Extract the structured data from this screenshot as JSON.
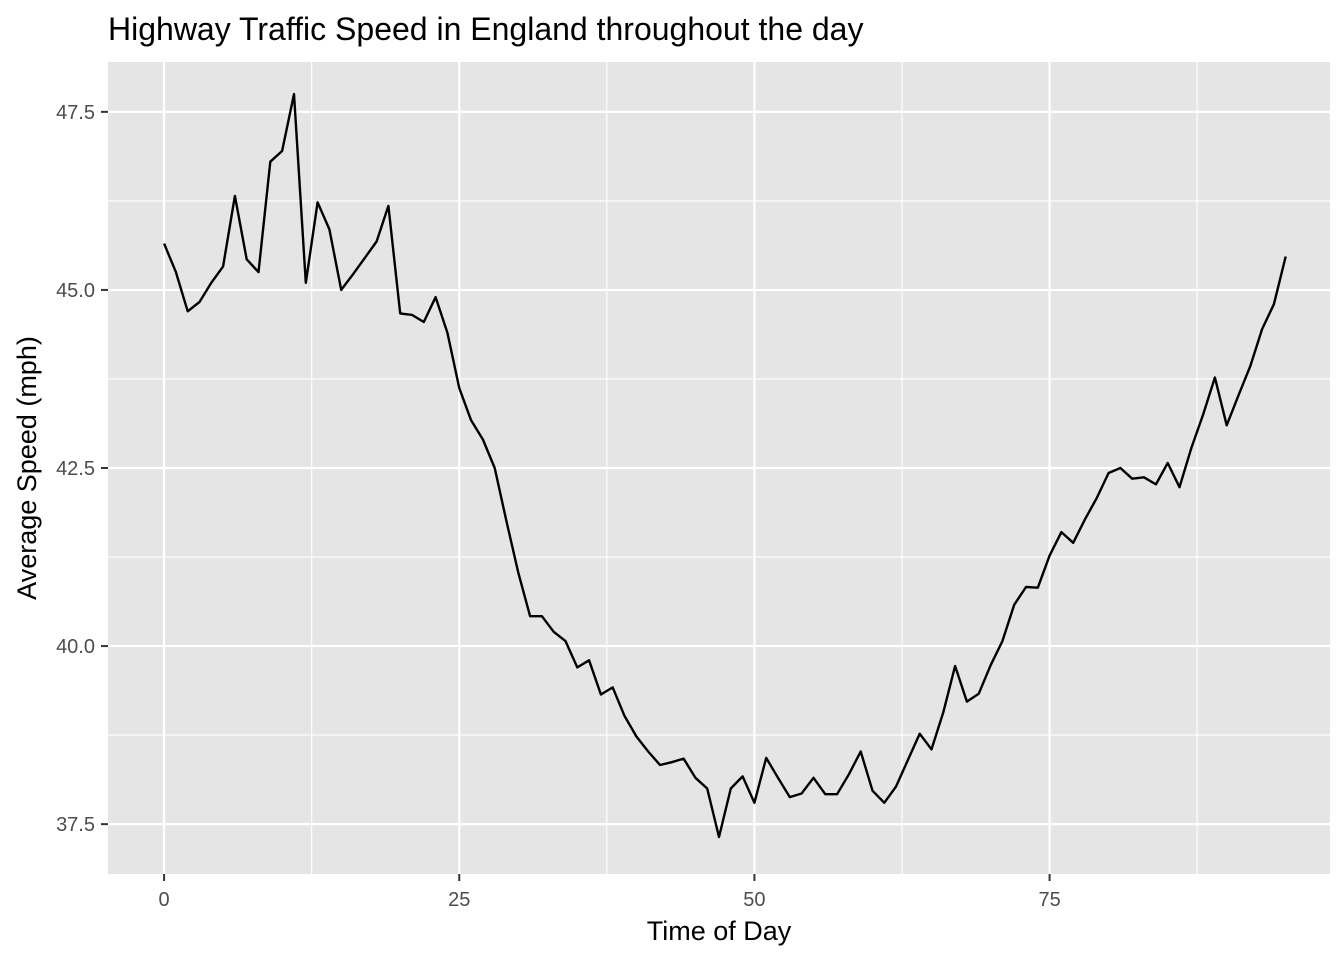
{
  "chart_data": {
    "type": "line",
    "title": "Highway Traffic Speed in England throughout the day",
    "xlabel": "Time of Day",
    "ylabel": "Average Speed (mph)",
    "xlim": [
      -4.75,
      98.75
    ],
    "ylim": [
      36.8,
      48.2
    ],
    "x_ticks": [
      0,
      25,
      50,
      75
    ],
    "x_tick_labels": [
      "0",
      "25",
      "50",
      "75"
    ],
    "y_ticks": [
      37.5,
      40.0,
      42.5,
      45.0,
      47.5
    ],
    "y_tick_labels": [
      "37.5",
      "40.0",
      "42.5",
      "45.0",
      "47.5"
    ],
    "grid": true,
    "colors": {
      "panel": "#e5e5e5",
      "grid": "#ffffff",
      "line": "#000000"
    },
    "series": [
      {
        "x": [
          0,
          1,
          2,
          3,
          4,
          5,
          6,
          7,
          8,
          9,
          10,
          11,
          12,
          13,
          14,
          15,
          16,
          17,
          18,
          19,
          20,
          21,
          22,
          23,
          24,
          25,
          26,
          27,
          28,
          29,
          30,
          31,
          32,
          33,
          34,
          35,
          36,
          37,
          38,
          39,
          40,
          41,
          42,
          43,
          44,
          45,
          46,
          47,
          48,
          49,
          50,
          51,
          52,
          53,
          54,
          55,
          56,
          57,
          58,
          59,
          60,
          61,
          62,
          63,
          64,
          65,
          66,
          67,
          68,
          69,
          70,
          71,
          72,
          73,
          74,
          75,
          76,
          77,
          78,
          79,
          80,
          81,
          82,
          83,
          84,
          85,
          86,
          87,
          88,
          89,
          90,
          91,
          92,
          93,
          94,
          95
        ],
        "values": [
          45.65,
          45.25,
          44.7,
          44.83,
          45.1,
          45.33,
          46.32,
          45.43,
          45.25,
          46.8,
          46.95,
          47.75,
          45.1,
          46.23,
          45.85,
          45.0,
          45.22,
          45.45,
          45.68,
          46.18,
          44.67,
          44.65,
          44.55,
          44.9,
          44.4,
          43.62,
          43.17,
          42.9,
          42.5,
          41.75,
          41.03,
          40.42,
          40.42,
          40.2,
          40.07,
          39.7,
          39.8,
          39.32,
          39.42,
          39.02,
          38.73,
          38.52,
          38.33,
          38.37,
          38.42,
          38.15,
          38.0,
          37.32,
          38.0,
          38.17,
          37.8,
          38.43,
          38.15,
          37.88,
          37.93,
          38.15,
          37.92,
          37.92,
          38.2,
          38.52,
          37.97,
          37.8,
          38.03,
          38.4,
          38.77,
          38.55,
          39.07,
          39.72,
          39.22,
          39.33,
          39.73,
          40.07,
          40.58,
          40.83,
          40.82,
          41.27,
          41.6,
          41.45,
          41.78,
          42.08,
          42.43,
          42.5,
          42.35,
          42.37,
          42.27,
          42.57,
          42.23,
          42.78,
          43.25,
          43.77,
          43.1,
          43.52,
          43.93,
          44.45,
          44.8,
          45.47
        ]
      }
    ]
  }
}
